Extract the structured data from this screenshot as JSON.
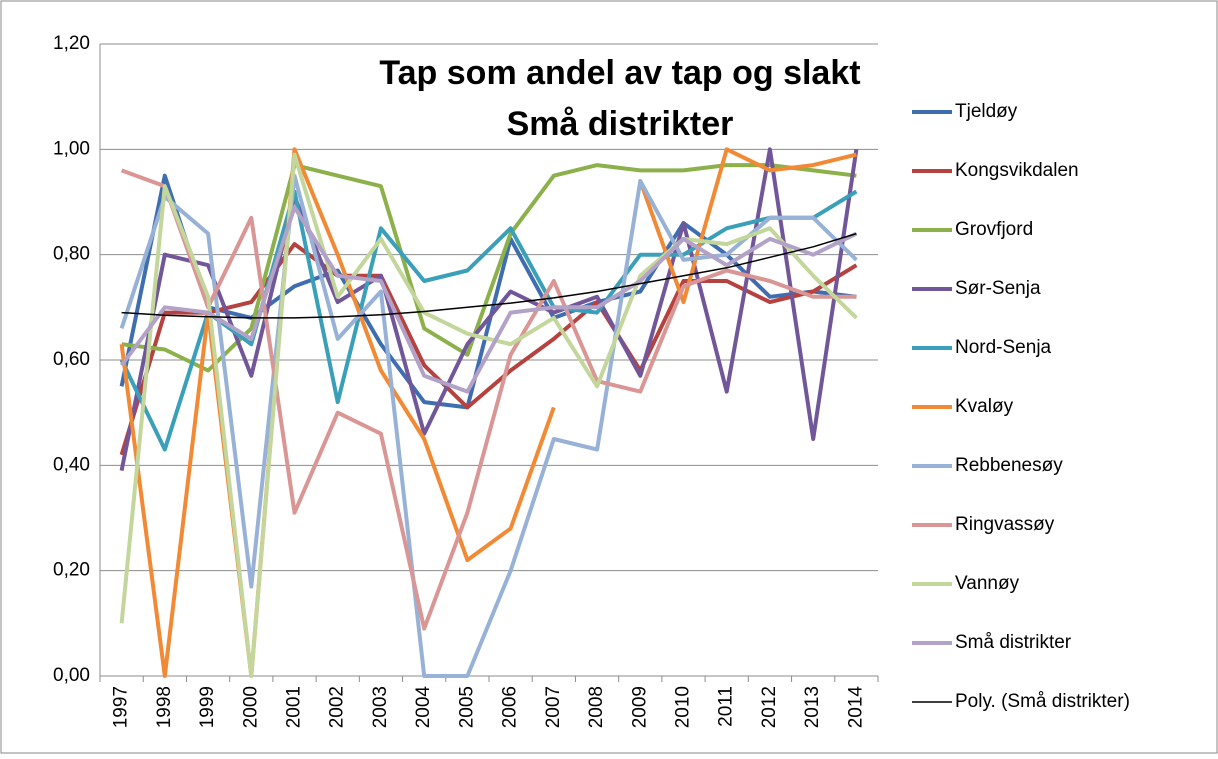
{
  "chart_data": {
    "type": "line",
    "title": "Tap som andel av tap og slakt",
    "subtitle": "Små distrikter",
    "categories": [
      "1997",
      "1998",
      "1999",
      "2000",
      "2001",
      "2002",
      "2003",
      "2004",
      "2005",
      "2006",
      "2007",
      "2008",
      "2009",
      "2010",
      "2011",
      "2012",
      "2013",
      "2014"
    ],
    "ylim": [
      0,
      1.2
    ],
    "yticks": [
      {
        "value": 0,
        "label": "0,00"
      },
      {
        "value": 0.2,
        "label": "0,20"
      },
      {
        "value": 0.4,
        "label": "0,40"
      },
      {
        "value": 0.6,
        "label": "0,60"
      },
      {
        "value": 0.8,
        "label": "0,80"
      },
      {
        "value": 1.0,
        "label": "1,00"
      },
      {
        "value": 1.2,
        "label": "1,20"
      }
    ],
    "grid": true,
    "legend": "right",
    "series": [
      {
        "name": "Tjeldøy",
        "color": "#3f6eb0",
        "values": [
          0.55,
          0.95,
          0.7,
          0.68,
          0.74,
          0.77,
          0.63,
          0.52,
          0.51,
          0.83,
          0.68,
          0.71,
          0.73,
          0.86,
          0.8,
          0.72,
          0.73,
          0.72
        ]
      },
      {
        "name": "Kongsvikdalen",
        "color": "#b5423f",
        "values": [
          0.42,
          0.69,
          0.69,
          0.71,
          0.82,
          0.76,
          0.76,
          0.59,
          0.51,
          0.58,
          0.64,
          0.71,
          0.58,
          0.75,
          0.75,
          0.71,
          0.73,
          0.78
        ]
      },
      {
        "name": "Grovfjord",
        "color": "#8cb04a",
        "values": [
          0.63,
          0.62,
          0.58,
          0.66,
          0.97,
          0.95,
          0.93,
          0.66,
          0.61,
          0.84,
          0.95,
          0.97,
          0.96,
          0.96,
          0.97,
          0.97,
          0.96,
          0.95
        ]
      },
      {
        "name": "Sør-Senja",
        "color": "#72569a",
        "values": [
          0.39,
          0.8,
          0.78,
          0.57,
          0.91,
          0.71,
          0.76,
          0.46,
          0.63,
          0.73,
          0.69,
          0.72,
          0.57,
          0.86,
          0.54,
          1.0,
          0.45,
          1.0
        ]
      },
      {
        "name": "Nord-Senja",
        "color": "#3a9fb8",
        "values": [
          0.6,
          0.43,
          0.69,
          0.63,
          0.92,
          0.52,
          0.85,
          0.75,
          0.77,
          0.85,
          0.7,
          0.69,
          0.8,
          0.8,
          0.85,
          0.87,
          0.87,
          0.92
        ]
      },
      {
        "name": "Kvaløy",
        "color": "#f28a35",
        "values": [
          0.63,
          0.0,
          0.69,
          0.0,
          1.0,
          0.8,
          0.58,
          0.45,
          0.22,
          0.28,
          0.51,
          null,
          0.94,
          0.71,
          1.0,
          0.96,
          0.97,
          0.99
        ]
      },
      {
        "name": "Rebbenesøy",
        "color": "#97b2d6",
        "values": [
          0.66,
          0.91,
          0.84,
          0.17,
          0.95,
          0.64,
          0.73,
          0.0,
          0.0,
          0.2,
          0.45,
          0.43,
          0.94,
          0.79,
          0.8,
          0.87,
          0.87,
          0.79
        ]
      },
      {
        "name": "Ringvassøy",
        "color": "#d99694",
        "values": [
          0.96,
          0.93,
          0.7,
          0.87,
          0.31,
          0.5,
          0.46,
          0.09,
          0.31,
          0.61,
          0.75,
          0.56,
          0.54,
          0.74,
          0.77,
          0.75,
          0.72,
          0.72
        ]
      },
      {
        "name": "Vannøy",
        "color": "#c3d69b",
        "values": [
          0.1,
          0.93,
          0.72,
          0.0,
          0.99,
          0.72,
          0.83,
          0.69,
          0.65,
          0.63,
          0.68,
          0.55,
          0.76,
          0.83,
          0.82,
          0.85,
          0.76,
          0.68
        ]
      },
      {
        "name": "Små distrikter",
        "color": "#b3a2c7",
        "values": [
          0.59,
          0.7,
          0.69,
          0.64,
          0.89,
          0.76,
          0.75,
          0.57,
          0.54,
          0.69,
          0.7,
          0.7,
          0.75,
          0.83,
          0.78,
          0.83,
          0.8,
          0.84
        ]
      },
      {
        "name": "Poly. (Små distrikter)",
        "color": "#000000",
        "trendline": true,
        "values": [
          0.69,
          0.685,
          0.682,
          0.68,
          0.68,
          0.682,
          0.686,
          0.692,
          0.7,
          0.708,
          0.718,
          0.73,
          0.745,
          0.76,
          0.775,
          0.795,
          0.815,
          0.84
        ]
      }
    ]
  }
}
